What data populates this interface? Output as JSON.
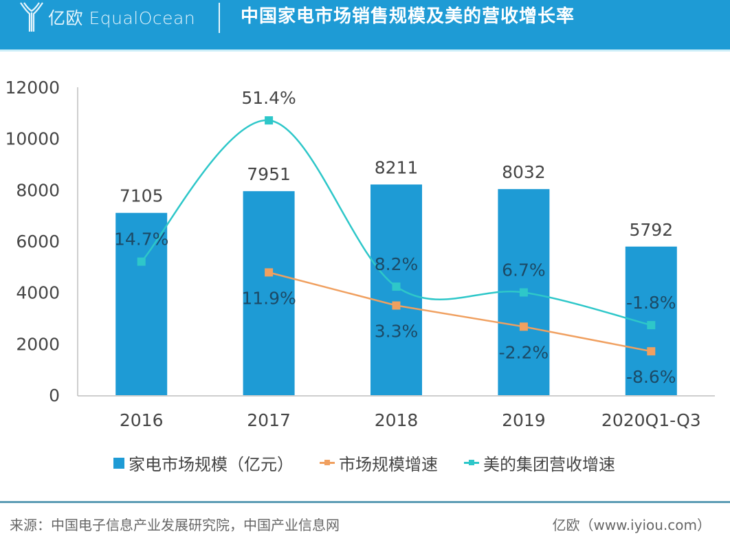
{
  "header": {
    "logo_text": "亿欧 EqualOcean",
    "title": "中国家电市场销售规模及美的营收增长率"
  },
  "colors": {
    "header_bg": "#1e9bd5",
    "bar": "#1e9bd5",
    "market_growth": "#f0a060",
    "midea_growth": "#2ec7c9"
  },
  "chart_data": {
    "type": "bar",
    "title": "中国家电市场销售规模及美的营收增长率",
    "xlabel": "",
    "ylabel": "",
    "categories": [
      "2016",
      "2017",
      "2018",
      "2019",
      "2020Q1-Q3"
    ],
    "ylim": [
      0,
      12000
    ],
    "yticks": [
      0,
      2000,
      4000,
      6000,
      8000,
      10000,
      12000
    ],
    "y2lim": [
      -20,
      60
    ],
    "grid": false,
    "legend_position": "bottom",
    "series": [
      {
        "name": "家电市场规模（亿元）",
        "type": "bar",
        "axis": "primary",
        "values": [
          7105,
          7951,
          8211,
          8032,
          5792
        ],
        "labels": [
          "7105",
          "7951",
          "8211",
          "8032",
          "5792"
        ]
      },
      {
        "name": "市场规模增速",
        "type": "line",
        "axis": "secondary",
        "unit": "%",
        "values": [
          null,
          11.9,
          3.3,
          -2.2,
          -8.6
        ],
        "labels": [
          "",
          "11.9%",
          "3.3%",
          "-2.2%",
          "-8.6%"
        ]
      },
      {
        "name": "美的集团营收增速",
        "type": "line",
        "smooth": true,
        "axis": "secondary",
        "unit": "%",
        "values": [
          14.7,
          51.4,
          8.2,
          6.7,
          -1.8
        ],
        "labels": [
          "14.7%",
          "51.4%",
          "8.2%",
          "6.7%",
          "-1.8%"
        ]
      }
    ]
  },
  "legend": [
    {
      "label": "家电市场规模（亿元）",
      "kind": "box"
    },
    {
      "label": "市场规模增速",
      "kind": "line"
    },
    {
      "label": "美的集团营收增速",
      "kind": "line"
    }
  ],
  "footer": {
    "source": "来源：中国电子信息产业发展研究院，中国产业信息网",
    "credit": "亿欧（www.iyiou.com）"
  }
}
